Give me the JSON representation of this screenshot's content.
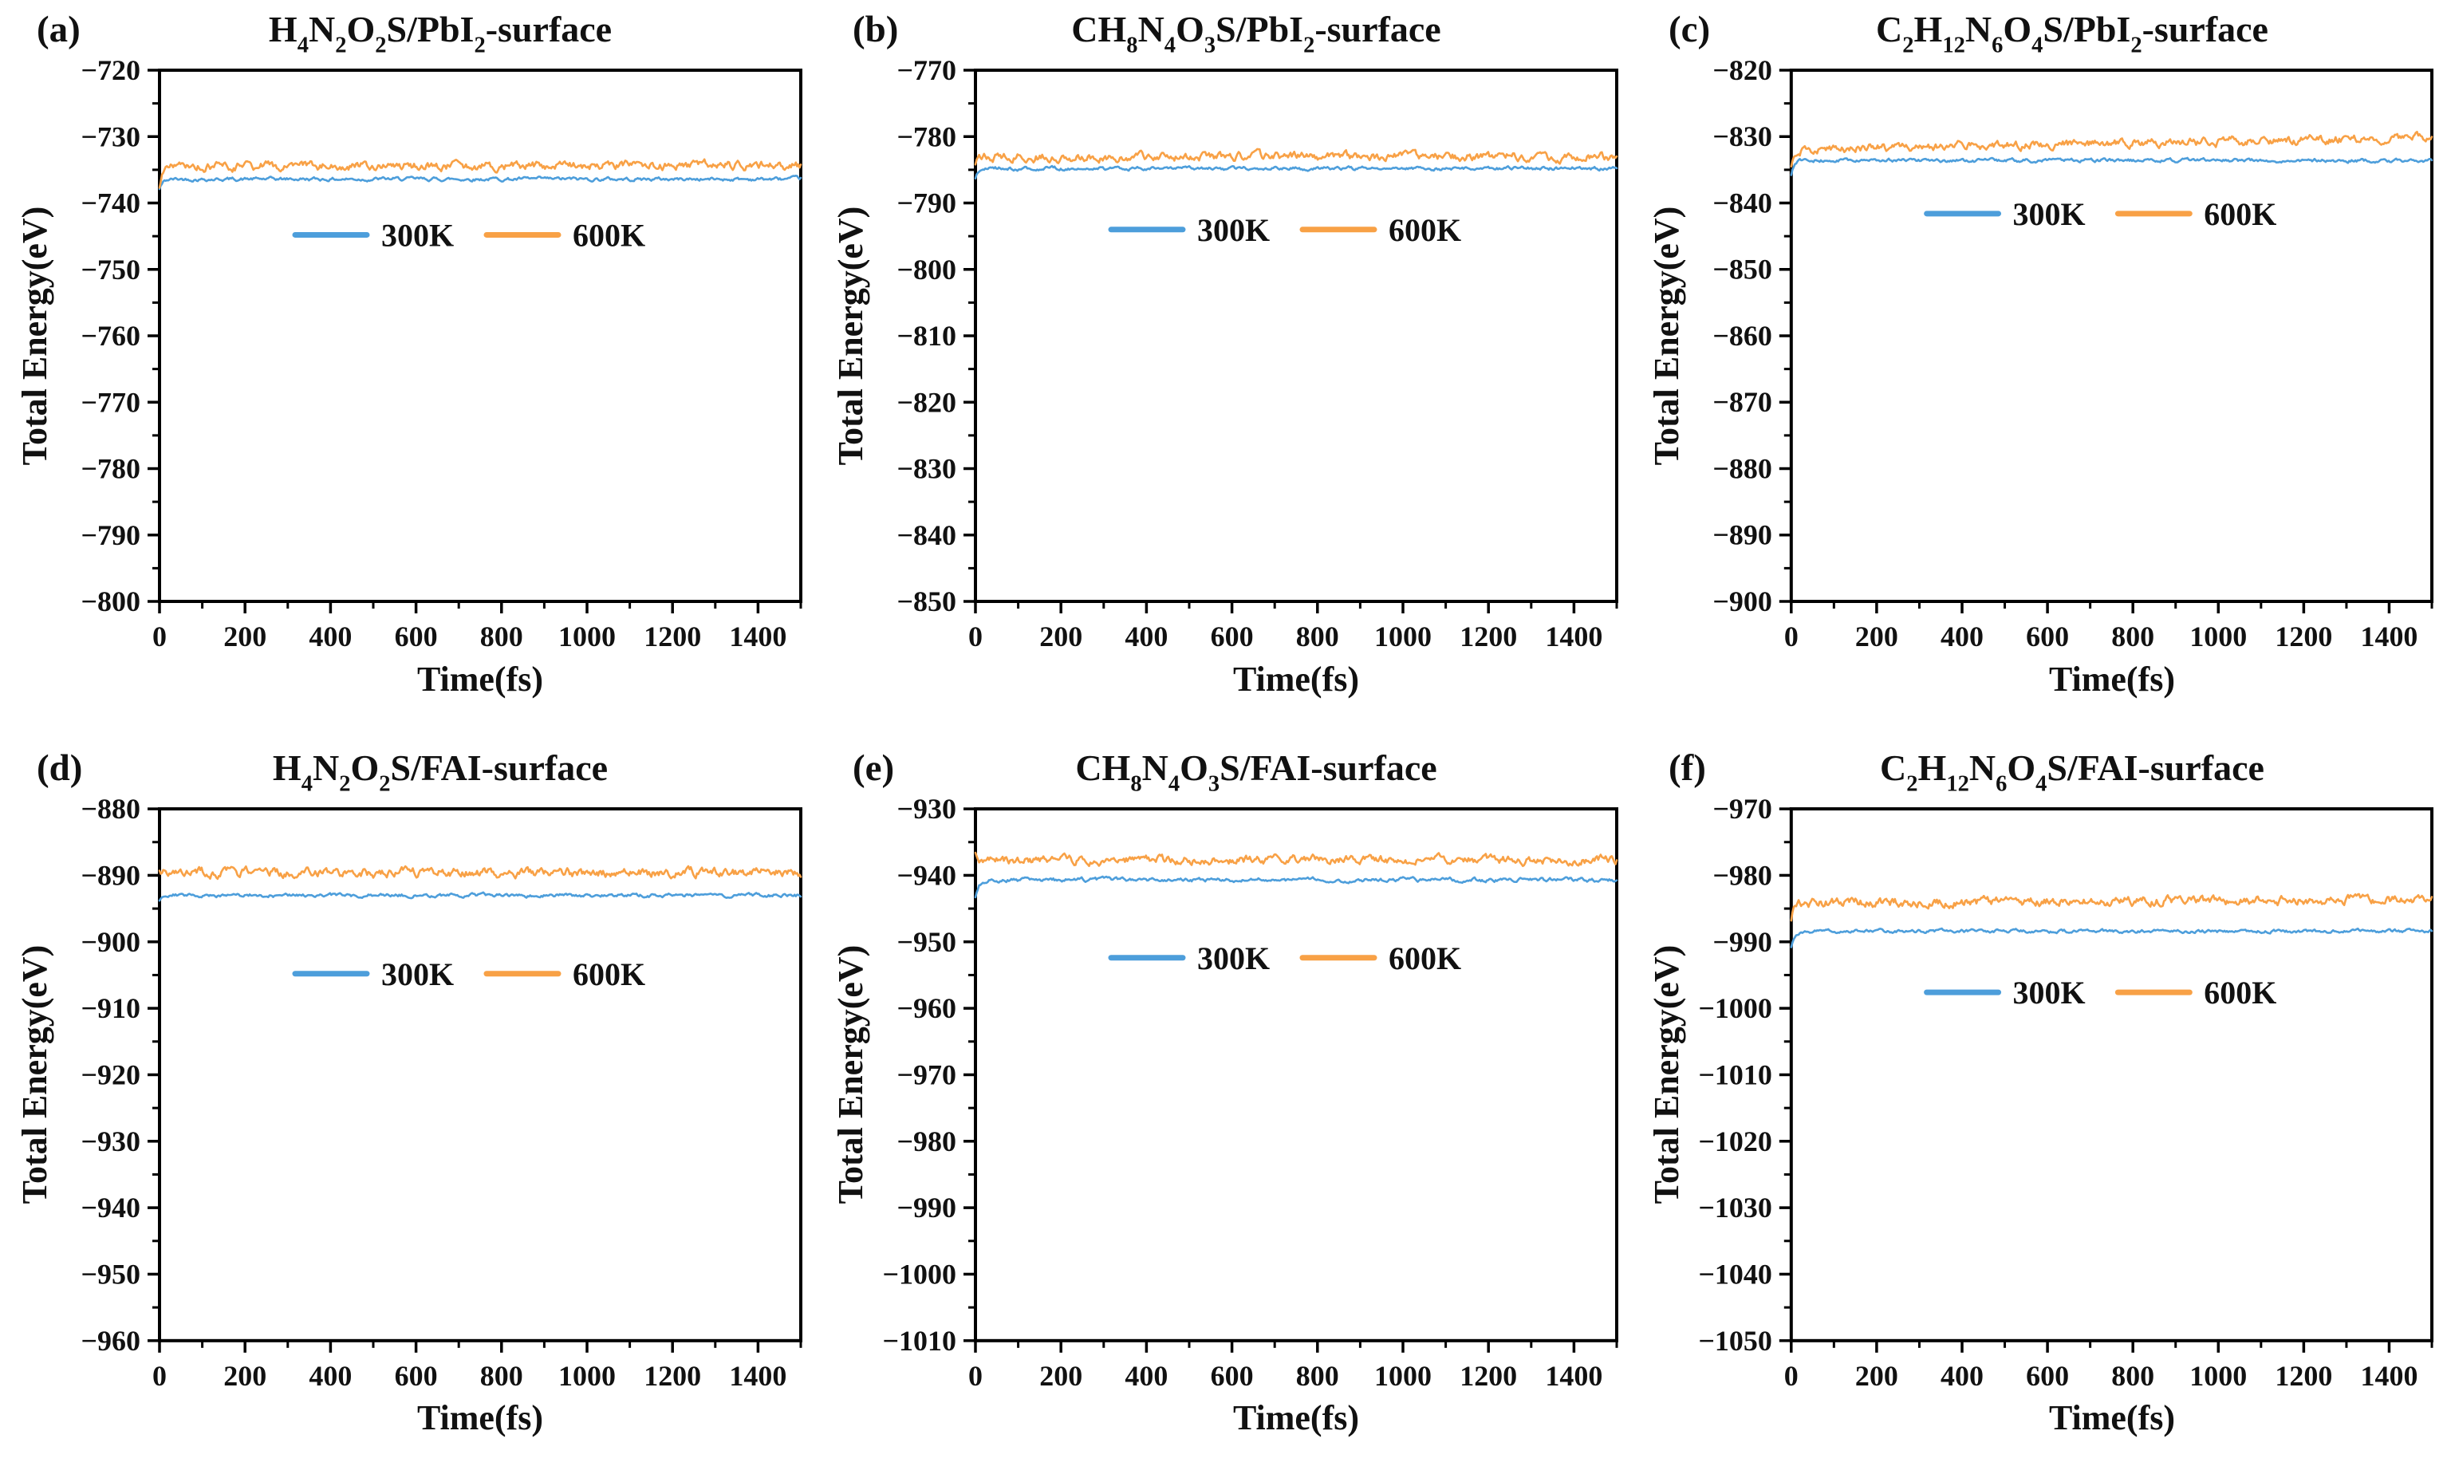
{
  "figure": {
    "description": "Six-panel total-energy vs time molecular dynamics figure, two temperatures per panel",
    "colors": {
      "series_300K": "#4D9EDB",
      "series_600K": "#F8A146",
      "axis": "#000000",
      "text": "#111111",
      "background": "#ffffff"
    },
    "legend_labels": [
      "300K",
      "600K"
    ]
  },
  "chart_data": [
    {
      "panel_label": "(a)",
      "type": "line",
      "title": "H_4N_2O_2S/PbI_2-surface",
      "xlabel": "Time(fs)",
      "ylabel": "Total Energy(eV)",
      "xlim": [
        0,
        1500
      ],
      "ylim": [
        -800,
        -720
      ],
      "x_major_step": 200,
      "x_minor_step": 100,
      "y_major_step": 10,
      "y_minor_step": 5,
      "x_tick_labels": [
        "0",
        "200",
        "400",
        "600",
        "800",
        "1000",
        "1200",
        "1400"
      ],
      "y_tick_labels": [
        "−720",
        "−730",
        "−740",
        "−750",
        "−760",
        "−770",
        "−780",
        "−790",
        "−800"
      ],
      "grid": "off",
      "legend": {
        "position": "inside-upper-center",
        "y_frac": 0.31,
        "entries": [
          {
            "label": "300K",
            "color": "#4D9EDB"
          },
          {
            "label": "600K",
            "color": "#F8A146"
          }
        ]
      },
      "series": [
        {
          "name": "300K",
          "color": "#4D9EDB",
          "points_estimated": true,
          "x_range": [
            0,
            1500
          ],
          "mean_energy_eV": -736.4,
          "fluctuation_eV": 0.55,
          "start_energy_eV": -737.9,
          "drift_eV": 0
        },
        {
          "name": "600K",
          "color": "#F8A146",
          "points_estimated": true,
          "x_range": [
            0,
            1500
          ],
          "mean_energy_eV": -734.4,
          "fluctuation_eV": 1.3,
          "start_energy_eV": -737.7,
          "drift_eV": 0.2
        }
      ]
    },
    {
      "panel_label": "(b)",
      "type": "line",
      "title": "CH_8N_4O_3S/PbI_2-surface",
      "xlabel": "Time(fs)",
      "ylabel": "Total Energy(eV)",
      "xlim": [
        0,
        1500
      ],
      "ylim": [
        -850,
        -770
      ],
      "x_major_step": 200,
      "x_minor_step": 100,
      "y_major_step": 10,
      "y_minor_step": 5,
      "x_tick_labels": [
        "0",
        "200",
        "400",
        "600",
        "800",
        "1000",
        "1200",
        "1400"
      ],
      "y_tick_labels": [
        "−770",
        "−780",
        "−790",
        "−800",
        "−810",
        "−820",
        "−830",
        "−840",
        "−850"
      ],
      "grid": "off",
      "legend": {
        "position": "inside-upper-center",
        "y_frac": 0.3,
        "entries": [
          {
            "label": "300K",
            "color": "#4D9EDB"
          },
          {
            "label": "600K",
            "color": "#F8A146"
          }
        ]
      },
      "series": [
        {
          "name": "300K",
          "color": "#4D9EDB",
          "points_estimated": true,
          "x_range": [
            0,
            1500
          ],
          "mean_energy_eV": -784.8,
          "fluctuation_eV": 0.55,
          "start_energy_eV": -786.3,
          "drift_eV": 0
        },
        {
          "name": "600K",
          "color": "#F8A146",
          "points_estimated": true,
          "x_range": [
            0,
            1500
          ],
          "mean_energy_eV": -783.0,
          "fluctuation_eV": 1.3,
          "start_energy_eV": -784.2,
          "drift_eV": 0
        }
      ]
    },
    {
      "panel_label": "(c)",
      "type": "line",
      "title": "C_2H_12N_6O_4S/PbI_2-surface",
      "xlabel": "Time(fs)",
      "ylabel": "Total Energy(eV)",
      "xlim": [
        0,
        1500
      ],
      "ylim": [
        -900,
        -820
      ],
      "x_major_step": 200,
      "x_minor_step": 100,
      "y_major_step": 10,
      "y_minor_step": 5,
      "x_tick_labels": [
        "0",
        "200",
        "400",
        "600",
        "800",
        "1000",
        "1200",
        "1400"
      ],
      "y_tick_labels": [
        "−820",
        "−830",
        "−840",
        "−850",
        "−860",
        "−870",
        "−880",
        "−890",
        "−900"
      ],
      "grid": "off",
      "legend": {
        "position": "inside-upper-center",
        "y_frac": 0.27,
        "entries": [
          {
            "label": "300K",
            "color": "#4D9EDB"
          },
          {
            "label": "600K",
            "color": "#F8A146"
          }
        ]
      },
      "series": [
        {
          "name": "300K",
          "color": "#4D9EDB",
          "points_estimated": true,
          "x_range": [
            0,
            1500
          ],
          "mean_energy_eV": -833.6,
          "fluctuation_eV": 0.55,
          "start_energy_eV": -835.8,
          "drift_eV": 0
        },
        {
          "name": "600K",
          "color": "#F8A146",
          "points_estimated": true,
          "x_range": [
            0,
            1500
          ],
          "mean_energy_eV": -831.0,
          "fluctuation_eV": 1.3,
          "start_energy_eV": -834.5,
          "drift_eV": 1.8
        }
      ]
    },
    {
      "panel_label": "(d)",
      "type": "line",
      "title": "H_4N_2O_2S/FAI-surface",
      "xlabel": "Time(fs)",
      "ylabel": "Total Energy(eV)",
      "xlim": [
        0,
        1500
      ],
      "ylim": [
        -960,
        -880
      ],
      "x_major_step": 200,
      "x_minor_step": 100,
      "y_major_step": 10,
      "y_minor_step": 5,
      "x_tick_labels": [
        "0",
        "200",
        "400",
        "600",
        "800",
        "1000",
        "1200",
        "1400"
      ],
      "y_tick_labels": [
        "−880",
        "−890",
        "−900",
        "−910",
        "−920",
        "−930",
        "−940",
        "−950",
        "−960"
      ],
      "grid": "off",
      "legend": {
        "position": "inside-upper-center",
        "y_frac": 0.31,
        "entries": [
          {
            "label": "300K",
            "color": "#4D9EDB"
          },
          {
            "label": "600K",
            "color": "#F8A146"
          }
        ]
      },
      "series": [
        {
          "name": "300K",
          "color": "#4D9EDB",
          "points_estimated": true,
          "x_range": [
            0,
            1500
          ],
          "mean_energy_eV": -893.0,
          "fluctuation_eV": 0.55,
          "start_energy_eV": -893.8,
          "drift_eV": 0
        },
        {
          "name": "600K",
          "color": "#F8A146",
          "points_estimated": true,
          "x_range": [
            0,
            1500
          ],
          "mean_energy_eV": -889.6,
          "fluctuation_eV": 1.4,
          "start_energy_eV": -889.3,
          "drift_eV": 0
        }
      ]
    },
    {
      "panel_label": "(e)",
      "type": "line",
      "title": "CH_8N_4O_3S/FAI-surface",
      "xlabel": "Time(fs)",
      "ylabel": "Total Energy(eV)",
      "xlim": [
        0,
        1500
      ],
      "ylim": [
        -1010,
        -930
      ],
      "x_major_step": 200,
      "x_minor_step": 100,
      "y_major_step": 10,
      "y_minor_step": 5,
      "x_tick_labels": [
        "0",
        "200",
        "400",
        "600",
        "800",
        "1000",
        "1200",
        "1400"
      ],
      "y_tick_labels": [
        "−930",
        "−940",
        "−950",
        "−960",
        "−970",
        "−980",
        "−990",
        "−1000",
        "−1010"
      ],
      "grid": "off",
      "legend": {
        "position": "inside-upper-center",
        "y_frac": 0.28,
        "entries": [
          {
            "label": "300K",
            "color": "#4D9EDB"
          },
          {
            "label": "600K",
            "color": "#F8A146"
          }
        ]
      },
      "series": [
        {
          "name": "300K",
          "color": "#4D9EDB",
          "points_estimated": true,
          "x_range": [
            0,
            1500
          ],
          "mean_energy_eV": -940.7,
          "fluctuation_eV": 0.6,
          "start_energy_eV": -943.3,
          "drift_eV": 0
        },
        {
          "name": "600K",
          "color": "#F8A146",
          "points_estimated": true,
          "x_range": [
            0,
            1500
          ],
          "mean_energy_eV": -937.7,
          "fluctuation_eV": 1.3,
          "start_energy_eV": -936.6,
          "drift_eV": 0
        }
      ]
    },
    {
      "panel_label": "(f)",
      "type": "line",
      "title": "C_2H_12N_6O_4S/FAI-surface",
      "xlabel": "Time(fs)",
      "ylabel": "Total Energy(eV)",
      "xlim": [
        0,
        1500
      ],
      "ylim": [
        -1050,
        -970
      ],
      "x_major_step": 200,
      "x_minor_step": 100,
      "y_major_step": 10,
      "y_minor_step": 5,
      "x_tick_labels": [
        "0",
        "200",
        "400",
        "600",
        "800",
        "1000",
        "1200",
        "1400"
      ],
      "y_tick_labels": [
        "−970",
        "−980",
        "−990",
        "−1000",
        "−1010",
        "−1020",
        "−1030",
        "−1040",
        "−1050"
      ],
      "grid": "off",
      "legend": {
        "position": "inside-upper-center",
        "y_frac": 0.345,
        "entries": [
          {
            "label": "300K",
            "color": "#4D9EDB"
          },
          {
            "label": "600K",
            "color": "#F8A146"
          }
        ]
      },
      "series": [
        {
          "name": "300K",
          "color": "#4D9EDB",
          "points_estimated": true,
          "x_range": [
            0,
            1500
          ],
          "mean_energy_eV": -988.4,
          "fluctuation_eV": 0.5,
          "start_energy_eV": -990.8,
          "drift_eV": 0
        },
        {
          "name": "600K",
          "color": "#F8A146",
          "points_estimated": true,
          "x_range": [
            0,
            1500
          ],
          "mean_energy_eV": -983.9,
          "fluctuation_eV": 1.4,
          "start_energy_eV": -986.8,
          "drift_eV": 0.4
        }
      ]
    }
  ]
}
